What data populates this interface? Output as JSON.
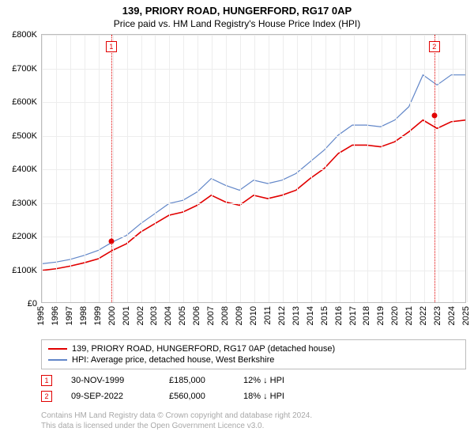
{
  "title": "139, PRIORY ROAD, HUNGERFORD, RG17 0AP",
  "subtitle": "Price paid vs. HM Land Registry's House Price Index (HPI)",
  "chart": {
    "type": "line",
    "y": {
      "min": 0,
      "max": 800000,
      "step": 100000,
      "labels": [
        "£0",
        "£100K",
        "£200K",
        "£300K",
        "£400K",
        "£500K",
        "£600K",
        "£700K",
        "£800K"
      ]
    },
    "x": {
      "min": 1995,
      "max": 2025,
      "labels": [
        "1995",
        "1996",
        "1997",
        "1998",
        "1999",
        "2000",
        "2001",
        "2002",
        "2003",
        "2004",
        "2005",
        "2006",
        "2007",
        "2008",
        "2009",
        "2010",
        "2011",
        "2012",
        "2013",
        "2014",
        "2015",
        "2016",
        "2017",
        "2018",
        "2019",
        "2020",
        "2021",
        "2022",
        "2023",
        "2024",
        "2025"
      ]
    },
    "colors": {
      "series_red": "#e10000",
      "series_blue": "#6186c8",
      "grid": "#ededed",
      "axis": "#bcbcbc",
      "background": "#ffffff",
      "marker_fill": "#e10000"
    },
    "line_width_red": 1.6,
    "line_width_blue": 1.2,
    "series_red": [
      [
        1995,
        95000
      ],
      [
        1996,
        100000
      ],
      [
        1997,
        108000
      ],
      [
        1998,
        118000
      ],
      [
        1999,
        130000
      ],
      [
        2000,
        155000
      ],
      [
        2001,
        175000
      ],
      [
        2002,
        210000
      ],
      [
        2003,
        235000
      ],
      [
        2004,
        260000
      ],
      [
        2005,
        270000
      ],
      [
        2006,
        290000
      ],
      [
        2007,
        320000
      ],
      [
        2008,
        300000
      ],
      [
        2009,
        290000
      ],
      [
        2010,
        320000
      ],
      [
        2011,
        310000
      ],
      [
        2012,
        320000
      ],
      [
        2013,
        335000
      ],
      [
        2014,
        370000
      ],
      [
        2015,
        400000
      ],
      [
        2016,
        445000
      ],
      [
        2017,
        470000
      ],
      [
        2018,
        470000
      ],
      [
        2019,
        465000
      ],
      [
        2020,
        480000
      ],
      [
        2021,
        510000
      ],
      [
        2022,
        545000
      ],
      [
        2023,
        520000
      ],
      [
        2024,
        540000
      ],
      [
        2025,
        545000
      ]
    ],
    "series_blue": [
      [
        1995,
        115000
      ],
      [
        1996,
        120000
      ],
      [
        1997,
        128000
      ],
      [
        1998,
        140000
      ],
      [
        1999,
        155000
      ],
      [
        2000,
        180000
      ],
      [
        2001,
        200000
      ],
      [
        2002,
        235000
      ],
      [
        2003,
        265000
      ],
      [
        2004,
        295000
      ],
      [
        2005,
        305000
      ],
      [
        2006,
        330000
      ],
      [
        2007,
        370000
      ],
      [
        2008,
        350000
      ],
      [
        2009,
        335000
      ],
      [
        2010,
        365000
      ],
      [
        2011,
        355000
      ],
      [
        2012,
        365000
      ],
      [
        2013,
        385000
      ],
      [
        2014,
        420000
      ],
      [
        2015,
        455000
      ],
      [
        2016,
        500000
      ],
      [
        2017,
        530000
      ],
      [
        2018,
        530000
      ],
      [
        2019,
        525000
      ],
      [
        2020,
        545000
      ],
      [
        2021,
        585000
      ],
      [
        2022,
        680000
      ],
      [
        2023,
        650000
      ],
      [
        2024,
        680000
      ],
      [
        2025,
        680000
      ]
    ],
    "transactions": [
      {
        "n": "1",
        "year": 1999.9,
        "price": 185000,
        "date": "30-NOV-1999",
        "price_label": "£185,000",
        "pct": "12% ↓ HPI"
      },
      {
        "n": "2",
        "year": 2022.7,
        "price": 560000,
        "date": "09-SEP-2022",
        "price_label": "£560,000",
        "pct": "18% ↓ HPI"
      }
    ]
  },
  "legend": {
    "red": "139, PRIORY ROAD, HUNGERFORD, RG17 0AP (detached house)",
    "blue": "HPI: Average price, detached house, West Berkshire"
  },
  "footer": {
    "line1": "Contains HM Land Registry data © Crown copyright and database right 2024.",
    "line2": "This data is licensed under the Open Government Licence v3.0."
  }
}
